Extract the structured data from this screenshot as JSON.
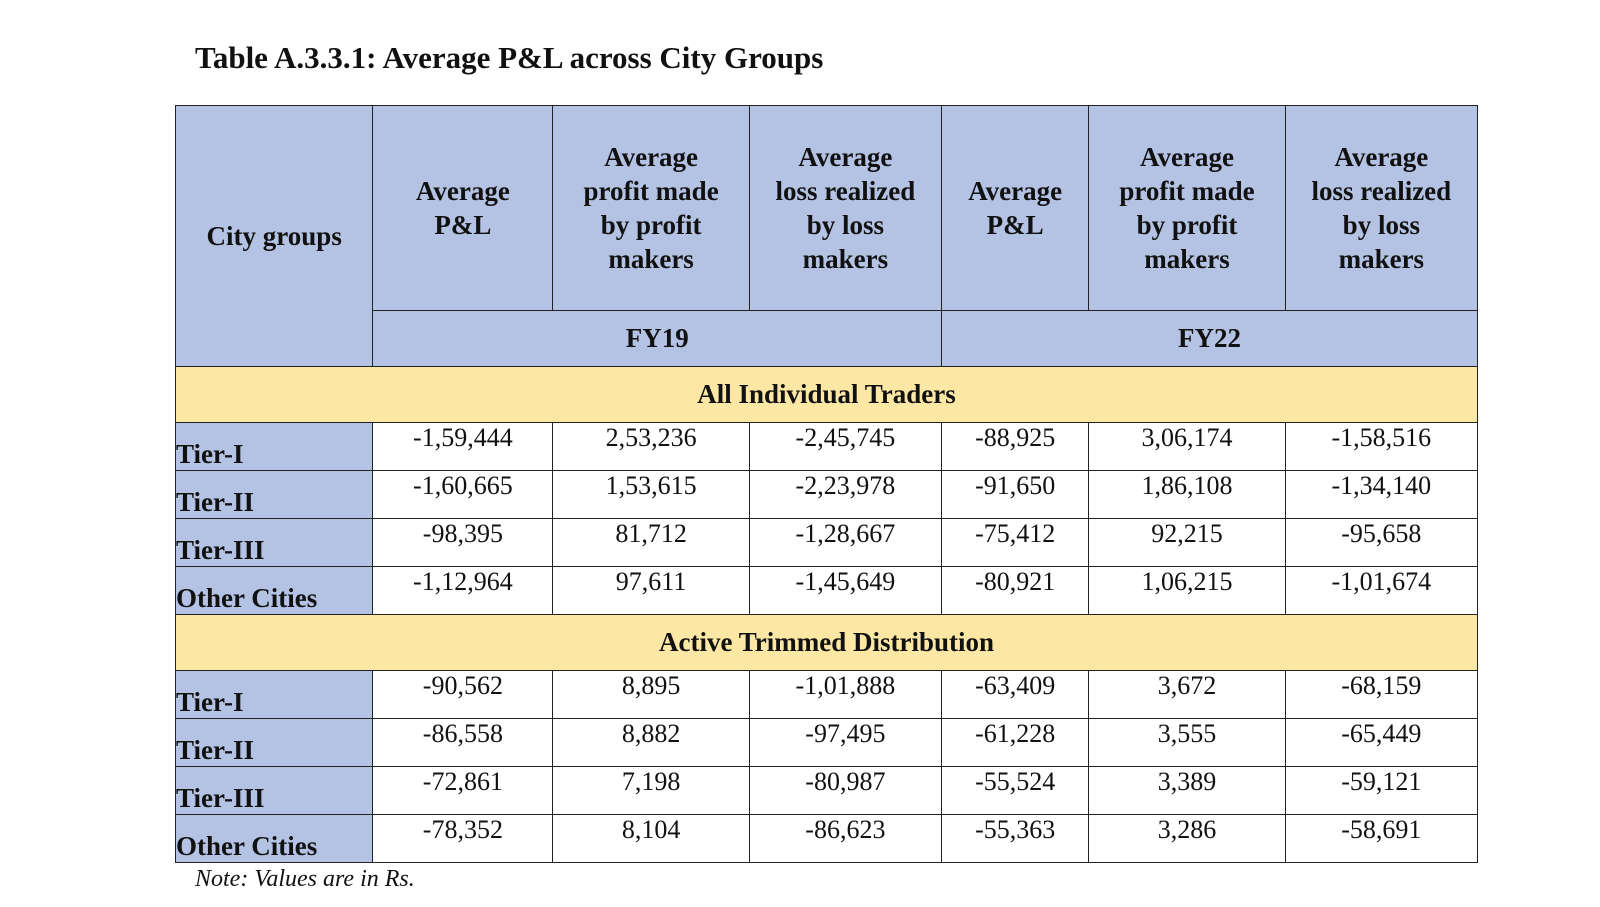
{
  "title": "Table A.3.3.1: Average P&L across City Groups",
  "table": {
    "corner_label": "City groups",
    "column_headers": [
      [
        "Average",
        "P&L"
      ],
      [
        "Average",
        "profit made",
        "by profit",
        "makers"
      ],
      [
        "Average",
        "loss realized",
        "by loss",
        "makers"
      ],
      [
        "Average",
        "P&L"
      ],
      [
        "Average",
        "profit made",
        "by profit",
        "makers"
      ],
      [
        "Average",
        "loss realized",
        "by loss",
        "makers"
      ]
    ],
    "years": [
      "FY19",
      "FY22"
    ],
    "sections": [
      {
        "title": "All Individual Traders",
        "rows": [
          {
            "label": "Tier-I",
            "values": [
              "-1,59,444",
              "2,53,236",
              "-2,45,745",
              "-88,925",
              "3,06,174",
              "-1,58,516"
            ]
          },
          {
            "label": "Tier-II",
            "values": [
              "-1,60,665",
              "1,53,615",
              "-2,23,978",
              "-91,650",
              "1,86,108",
              "-1,34,140"
            ]
          },
          {
            "label": "Tier-III",
            "values": [
              "-98,395",
              "81,712",
              "-1,28,667",
              "-75,412",
              "92,215",
              "-95,658"
            ]
          },
          {
            "label": "Other Cities",
            "values": [
              "-1,12,964",
              "97,611",
              "-1,45,649",
              "-80,921",
              "1,06,215",
              "-1,01,674"
            ]
          }
        ]
      },
      {
        "title": "Active Trimmed Distribution",
        "rows": [
          {
            "label": "Tier-I",
            "values": [
              "-90,562",
              "8,895",
              "-1,01,888",
              "-63,409",
              "3,672",
              "-68,159"
            ]
          },
          {
            "label": "Tier-II",
            "values": [
              "-86,558",
              "8,882",
              "-97,495",
              "-61,228",
              "3,555",
              "-65,449"
            ]
          },
          {
            "label": "Tier-III",
            "values": [
              "-72,861",
              "7,198",
              "-80,987",
              "-55,524",
              "3,389",
              "-59,121"
            ]
          },
          {
            "label": "Other Cities",
            "values": [
              "-78,352",
              "8,104",
              "-86,623",
              "-55,363",
              "3,286",
              "-58,691"
            ]
          }
        ]
      }
    ]
  },
  "note": "Note: Values are in Rs.",
  "colors": {
    "header_fill": "#b4c3e3",
    "section_fill": "#fce8a4",
    "border": "#222222"
  }
}
